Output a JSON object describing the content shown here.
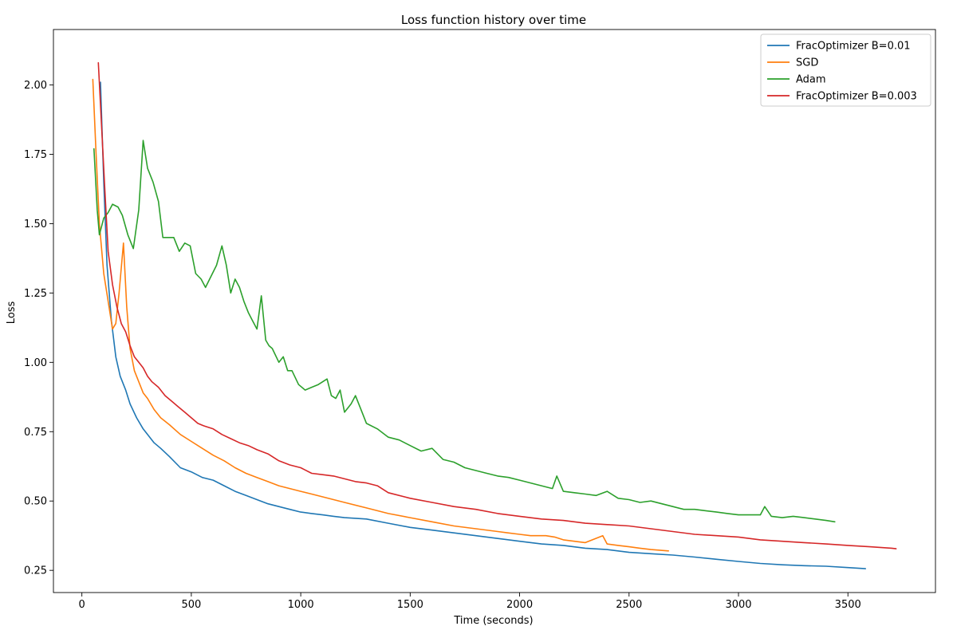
{
  "chart_data": {
    "type": "line",
    "title": "Loss function history over time",
    "xlabel": "Time (seconds)",
    "ylabel": "Loss",
    "xlim": [
      -130,
      3900
    ],
    "ylim": [
      0.17,
      2.2
    ],
    "xticks": [
      0,
      500,
      1000,
      1500,
      2000,
      2500,
      3000,
      3500
    ],
    "yticks": [
      0.25,
      0.5,
      0.75,
      1.0,
      1.25,
      1.5,
      1.75,
      2.0
    ],
    "xtick_labels": [
      "0",
      "500",
      "1000",
      "1500",
      "2000",
      "2500",
      "3000",
      "3500"
    ],
    "ytick_labels": [
      "0.25",
      "0.50",
      "0.75",
      "1.00",
      "1.25",
      "1.50",
      "1.75",
      "2.00"
    ],
    "grid": false,
    "legend_position": "top-right",
    "series": [
      {
        "name": "FracOptimizer B=0.01",
        "color": "#1f77b4",
        "x": [
          85,
          100,
          115,
          135,
          155,
          175,
          200,
          220,
          250,
          280,
          300,
          330,
          360,
          400,
          450,
          500,
          550,
          600,
          650,
          700,
          750,
          800,
          850,
          900,
          950,
          1000,
          1050,
          1100,
          1150,
          1200,
          1300,
          1400,
          1500,
          1600,
          1700,
          1800,
          1900,
          2000,
          2100,
          2200,
          2300,
          2400,
          2500,
          2600,
          2700,
          2800,
          2900,
          3000,
          3100,
          3200,
          3300,
          3400,
          3500,
          3580
        ],
        "y": [
          2.01,
          1.65,
          1.35,
          1.15,
          1.02,
          0.95,
          0.9,
          0.85,
          0.8,
          0.76,
          0.74,
          0.71,
          0.69,
          0.66,
          0.62,
          0.605,
          0.585,
          0.575,
          0.555,
          0.535,
          0.52,
          0.505,
          0.49,
          0.48,
          0.47,
          0.46,
          0.455,
          0.45,
          0.445,
          0.44,
          0.435,
          0.42,
          0.405,
          0.395,
          0.385,
          0.375,
          0.365,
          0.355,
          0.345,
          0.34,
          0.33,
          0.325,
          0.315,
          0.31,
          0.305,
          0.298,
          0.29,
          0.282,
          0.275,
          0.27,
          0.267,
          0.265,
          0.26,
          0.256
        ]
      },
      {
        "name": "SGD",
        "color": "#ff7f0e",
        "x": [
          50,
          65,
          80,
          100,
          120,
          140,
          155,
          170,
          190,
          205,
          220,
          240,
          260,
          280,
          300,
          330,
          360,
          400,
          450,
          500,
          550,
          600,
          650,
          700,
          750,
          800,
          850,
          900,
          950,
          1000,
          1050,
          1100,
          1150,
          1200,
          1300,
          1400,
          1500,
          1600,
          1700,
          1800,
          1900,
          2000,
          2050,
          2120,
          2160,
          2200,
          2300,
          2380,
          2400,
          2450,
          2500,
          2550,
          2600,
          2680
        ],
        "y": [
          2.02,
          1.75,
          1.5,
          1.32,
          1.22,
          1.12,
          1.14,
          1.25,
          1.43,
          1.2,
          1.05,
          0.97,
          0.93,
          0.89,
          0.87,
          0.83,
          0.8,
          0.775,
          0.74,
          0.715,
          0.69,
          0.665,
          0.645,
          0.62,
          0.6,
          0.585,
          0.57,
          0.555,
          0.545,
          0.535,
          0.525,
          0.515,
          0.505,
          0.495,
          0.475,
          0.455,
          0.44,
          0.425,
          0.41,
          0.4,
          0.39,
          0.38,
          0.375,
          0.375,
          0.37,
          0.36,
          0.35,
          0.375,
          0.345,
          0.34,
          0.335,
          0.33,
          0.325,
          0.32
        ]
      },
      {
        "name": "Adam",
        "color": "#2ca02c",
        "x": [
          55,
          70,
          80,
          100,
          120,
          140,
          165,
          185,
          210,
          235,
          260,
          280,
          300,
          325,
          350,
          370,
          400,
          420,
          445,
          470,
          495,
          520,
          545,
          565,
          590,
          615,
          640,
          660,
          680,
          700,
          720,
          740,
          760,
          780,
          800,
          820,
          840,
          855,
          870,
          900,
          920,
          940,
          960,
          990,
          1020,
          1050,
          1080,
          1100,
          1120,
          1140,
          1160,
          1180,
          1200,
          1230,
          1250,
          1280,
          1300,
          1350,
          1400,
          1450,
          1500,
          1550,
          1600,
          1650,
          1700,
          1750,
          1800,
          1850,
          1900,
          1950,
          2000,
          2050,
          2100,
          2150,
          2170,
          2200,
          2250,
          2300,
          2350,
          2400,
          2450,
          2500,
          2550,
          2600,
          2650,
          2700,
          2750,
          2800,
          2850,
          2900,
          2950,
          3000,
          3050,
          3100,
          3120,
          3150,
          3200,
          3250,
          3300,
          3350,
          3400,
          3440
        ],
        "y": [
          1.77,
          1.55,
          1.46,
          1.52,
          1.54,
          1.57,
          1.56,
          1.53,
          1.46,
          1.41,
          1.55,
          1.8,
          1.7,
          1.65,
          1.58,
          1.45,
          1.45,
          1.45,
          1.4,
          1.43,
          1.42,
          1.32,
          1.3,
          1.27,
          1.31,
          1.35,
          1.42,
          1.35,
          1.25,
          1.3,
          1.27,
          1.22,
          1.18,
          1.15,
          1.12,
          1.24,
          1.08,
          1.06,
          1.05,
          1.0,
          1.02,
          0.97,
          0.97,
          0.92,
          0.9,
          0.91,
          0.92,
          0.93,
          0.94,
          0.88,
          0.87,
          0.9,
          0.82,
          0.85,
          0.88,
          0.82,
          0.78,
          0.76,
          0.73,
          0.72,
          0.7,
          0.68,
          0.69,
          0.65,
          0.64,
          0.62,
          0.61,
          0.6,
          0.59,
          0.585,
          0.575,
          0.565,
          0.555,
          0.545,
          0.59,
          0.535,
          0.53,
          0.525,
          0.52,
          0.535,
          0.51,
          0.505,
          0.495,
          0.5,
          0.49,
          0.48,
          0.47,
          0.47,
          0.465,
          0.46,
          0.455,
          0.45,
          0.45,
          0.45,
          0.48,
          0.445,
          0.44,
          0.445,
          0.44,
          0.435,
          0.43,
          0.425
        ]
      },
      {
        "name": "FracOptimizer B=0.003",
        "color": "#d62728",
        "x": [
          75,
          90,
          105,
          120,
          140,
          160,
          180,
          200,
          220,
          240,
          260,
          280,
          300,
          320,
          350,
          380,
          410,
          440,
          470,
          500,
          530,
          560,
          600,
          640,
          680,
          720,
          760,
          800,
          850,
          900,
          950,
          1000,
          1050,
          1100,
          1150,
          1200,
          1250,
          1300,
          1350,
          1400,
          1500,
          1600,
          1700,
          1800,
          1900,
          2000,
          2100,
          2200,
          2300,
          2400,
          2500,
          2600,
          2700,
          2800,
          2900,
          3000,
          3100,
          3200,
          3300,
          3400,
          3500,
          3600,
          3700,
          3720
        ],
        "y": [
          2.08,
          1.85,
          1.62,
          1.4,
          1.28,
          1.2,
          1.14,
          1.11,
          1.06,
          1.02,
          1.0,
          0.98,
          0.95,
          0.93,
          0.91,
          0.88,
          0.86,
          0.84,
          0.82,
          0.8,
          0.78,
          0.77,
          0.76,
          0.74,
          0.725,
          0.71,
          0.7,
          0.685,
          0.67,
          0.645,
          0.63,
          0.62,
          0.6,
          0.595,
          0.59,
          0.58,
          0.57,
          0.565,
          0.555,
          0.53,
          0.51,
          0.495,
          0.48,
          0.47,
          0.455,
          0.445,
          0.435,
          0.43,
          0.42,
          0.415,
          0.41,
          0.4,
          0.39,
          0.38,
          0.375,
          0.37,
          0.36,
          0.355,
          0.35,
          0.345,
          0.34,
          0.335,
          0.33,
          0.328
        ]
      }
    ]
  }
}
